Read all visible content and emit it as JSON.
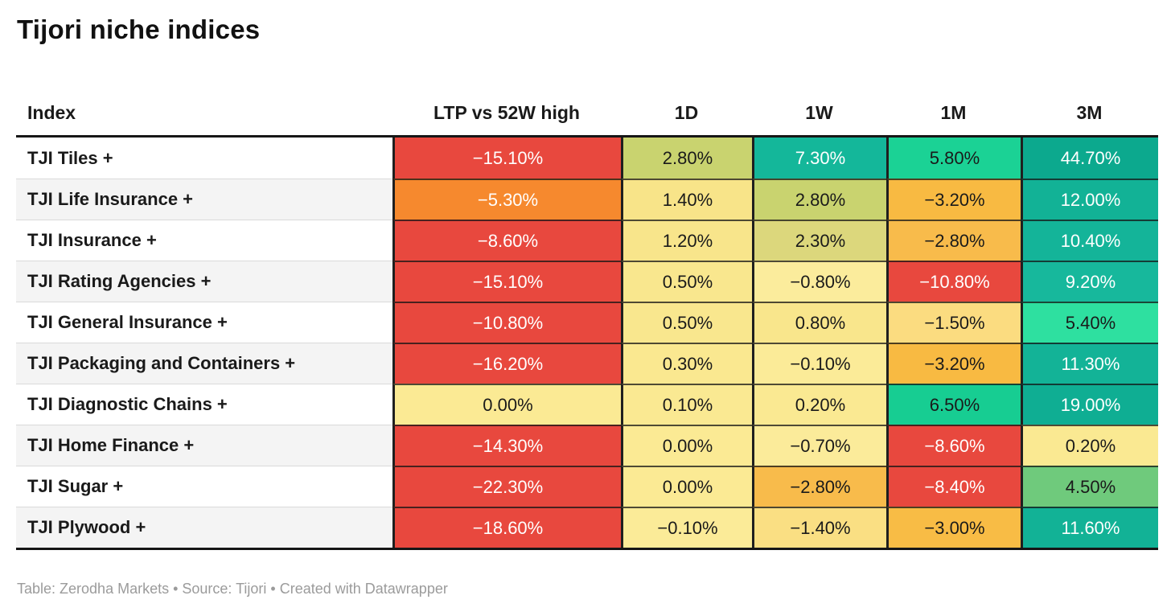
{
  "title": "Tijori niche indices",
  "footer": "Table: Zerodha Markets • Source: Tijori • Created with Datawrapper",
  "accent_colors": {
    "strong_negative": "#e8483e",
    "negative_orange": "#f6892e",
    "mild_negative": "#f8ba42",
    "neutral_yellow": "#fbea94",
    "mild_positive": "#c9d36f",
    "positive_green": "#1bd295",
    "strong_positive_teal": "#12b296",
    "header_rule": "#161616"
  },
  "table": {
    "columns": [
      {
        "key": "index",
        "label": "Index"
      },
      {
        "key": "ltp",
        "label": "LTP vs 52W high"
      },
      {
        "key": "1d",
        "label": "1D"
      },
      {
        "key": "1w",
        "label": "1W"
      },
      {
        "key": "1m",
        "label": "1M"
      },
      {
        "key": "3m",
        "label": "3M"
      }
    ],
    "rows": [
      {
        "index": "TJI Tiles +",
        "cells": [
          {
            "v": "−15.10%",
            "bg": "#e8483e",
            "fg": "#ffffff"
          },
          {
            "v": "2.80%",
            "bg": "#c9d36f",
            "fg": "#1a1a1a"
          },
          {
            "v": "7.30%",
            "bg": "#14b79a",
            "fg": "#ffffff"
          },
          {
            "v": "5.80%",
            "bg": "#1bd295",
            "fg": "#1a1a1a"
          },
          {
            "v": "44.70%",
            "bg": "#0ca98e",
            "fg": "#ffffff"
          }
        ]
      },
      {
        "index": "TJI Life Insurance +",
        "cells": [
          {
            "v": "−5.30%",
            "bg": "#f6892e",
            "fg": "#ffffff"
          },
          {
            "v": "1.40%",
            "bg": "#f8e489",
            "fg": "#1a1a1a"
          },
          {
            "v": "2.80%",
            "bg": "#c9d36f",
            "fg": "#1a1a1a"
          },
          {
            "v": "−3.20%",
            "bg": "#f8ba42",
            "fg": "#1a1a1a"
          },
          {
            "v": "12.00%",
            "bg": "#12b296",
            "fg": "#ffffff"
          }
        ]
      },
      {
        "index": "TJI Insurance +",
        "cells": [
          {
            "v": "−8.60%",
            "bg": "#e8483e",
            "fg": "#ffffff"
          },
          {
            "v": "1.20%",
            "bg": "#f8e58b",
            "fg": "#1a1a1a"
          },
          {
            "v": "2.30%",
            "bg": "#dcd77c",
            "fg": "#1a1a1a"
          },
          {
            "v": "−2.80%",
            "bg": "#f8bb4b",
            "fg": "#1a1a1a"
          },
          {
            "v": "10.40%",
            "bg": "#14b499",
            "fg": "#ffffff"
          }
        ]
      },
      {
        "index": "TJI Rating Agencies +",
        "cells": [
          {
            "v": "−15.10%",
            "bg": "#e8483e",
            "fg": "#ffffff"
          },
          {
            "v": "0.50%",
            "bg": "#f9e78e",
            "fg": "#1a1a1a"
          },
          {
            "v": "−0.80%",
            "bg": "#fbec9c",
            "fg": "#1a1a1a"
          },
          {
            "v": "−10.80%",
            "bg": "#e8483e",
            "fg": "#ffffff"
          },
          {
            "v": "9.20%",
            "bg": "#17b89c",
            "fg": "#ffffff"
          }
        ]
      },
      {
        "index": "TJI General Insurance +",
        "cells": [
          {
            "v": "−10.80%",
            "bg": "#e8483e",
            "fg": "#ffffff"
          },
          {
            "v": "0.50%",
            "bg": "#f9e78e",
            "fg": "#1a1a1a"
          },
          {
            "v": "0.80%",
            "bg": "#f9e68c",
            "fg": "#1a1a1a"
          },
          {
            "v": "−1.50%",
            "bg": "#fbdc80",
            "fg": "#1a1a1a"
          },
          {
            "v": "5.40%",
            "bg": "#2ee0a0",
            "fg": "#1a1a1a"
          }
        ]
      },
      {
        "index": "TJI Packaging and Containers +",
        "cells": [
          {
            "v": "−16.20%",
            "bg": "#e8483e",
            "fg": "#ffffff"
          },
          {
            "v": "0.30%",
            "bg": "#fae890",
            "fg": "#1a1a1a"
          },
          {
            "v": "−0.10%",
            "bg": "#fbeb98",
            "fg": "#1a1a1a"
          },
          {
            "v": "−3.20%",
            "bg": "#f8ba42",
            "fg": "#1a1a1a"
          },
          {
            "v": "11.30%",
            "bg": "#13b397",
            "fg": "#ffffff"
          }
        ]
      },
      {
        "index": "TJI Diagnostic Chains +",
        "cells": [
          {
            "v": "0.00%",
            "bg": "#fbea94",
            "fg": "#1a1a1a"
          },
          {
            "v": "0.10%",
            "bg": "#fae992",
            "fg": "#1a1a1a"
          },
          {
            "v": "0.20%",
            "bg": "#fae992",
            "fg": "#1a1a1a"
          },
          {
            "v": "6.50%",
            "bg": "#17cd92",
            "fg": "#1a1a1a"
          },
          {
            "v": "19.00%",
            "bg": "#0fae93",
            "fg": "#ffffff"
          }
        ]
      },
      {
        "index": "TJI Home Finance +",
        "cells": [
          {
            "v": "−14.30%",
            "bg": "#e8483e",
            "fg": "#ffffff"
          },
          {
            "v": "0.00%",
            "bg": "#fbea94",
            "fg": "#1a1a1a"
          },
          {
            "v": "−0.70%",
            "bg": "#fbeb9a",
            "fg": "#1a1a1a"
          },
          {
            "v": "−8.60%",
            "bg": "#e8483e",
            "fg": "#ffffff"
          },
          {
            "v": "0.20%",
            "bg": "#fae992",
            "fg": "#1a1a1a"
          }
        ]
      },
      {
        "index": "TJI Sugar +",
        "cells": [
          {
            "v": "−22.30%",
            "bg": "#e8483e",
            "fg": "#ffffff"
          },
          {
            "v": "0.00%",
            "bg": "#fbea94",
            "fg": "#1a1a1a"
          },
          {
            "v": "−2.80%",
            "bg": "#f8bb4b",
            "fg": "#1a1a1a"
          },
          {
            "v": "−8.40%",
            "bg": "#e8483e",
            "fg": "#ffffff"
          },
          {
            "v": "4.50%",
            "bg": "#6fca7c",
            "fg": "#1a1a1a"
          }
        ]
      },
      {
        "index": "TJI Plywood +",
        "cells": [
          {
            "v": "−18.60%",
            "bg": "#e8483e",
            "fg": "#ffffff"
          },
          {
            "v": "−0.10%",
            "bg": "#fbeb98",
            "fg": "#1a1a1a"
          },
          {
            "v": "−1.40%",
            "bg": "#fadf83",
            "fg": "#1a1a1a"
          },
          {
            "v": "−3.00%",
            "bg": "#f8bc45",
            "fg": "#1a1a1a"
          },
          {
            "v": "11.60%",
            "bg": "#12b296",
            "fg": "#ffffff"
          }
        ]
      }
    ]
  },
  "chart_data": {
    "type": "table",
    "title": "Tijori niche indices",
    "row_header": "Index",
    "rows": [
      "TJI Tiles +",
      "TJI Life Insurance +",
      "TJI Insurance +",
      "TJI Rating Agencies +",
      "TJI General Insurance +",
      "TJI Packaging and Containers +",
      "TJI Diagnostic Chains +",
      "TJI Home Finance +",
      "TJI Sugar +",
      "TJI Plywood +"
    ],
    "columns": [
      "LTP vs 52W high",
      "1D",
      "1W",
      "1M",
      "3M"
    ],
    "values_pct": [
      [
        -15.1,
        2.8,
        7.3,
        5.8,
        44.7
      ],
      [
        -5.3,
        1.4,
        2.8,
        -3.2,
        12.0
      ],
      [
        -8.6,
        1.2,
        2.3,
        -2.8,
        10.4
      ],
      [
        -15.1,
        0.5,
        -0.8,
        -10.8,
        9.2
      ],
      [
        -10.8,
        0.5,
        0.8,
        -1.5,
        5.4
      ],
      [
        -16.2,
        0.3,
        -0.1,
        -3.2,
        11.3
      ],
      [
        0.0,
        0.1,
        0.2,
        6.5,
        19.0
      ],
      [
        -14.3,
        0.0,
        -0.7,
        -8.6,
        0.2
      ],
      [
        -22.3,
        0.0,
        -2.8,
        -8.4,
        4.5
      ],
      [
        -18.6,
        -0.1,
        -1.4,
        -3.0,
        11.6
      ]
    ],
    "color_coding": "red = negative, yellow = near zero, green/teal = positive",
    "note": "Table: Zerodha Markets • Source: Tijori • Created with Datawrapper"
  }
}
